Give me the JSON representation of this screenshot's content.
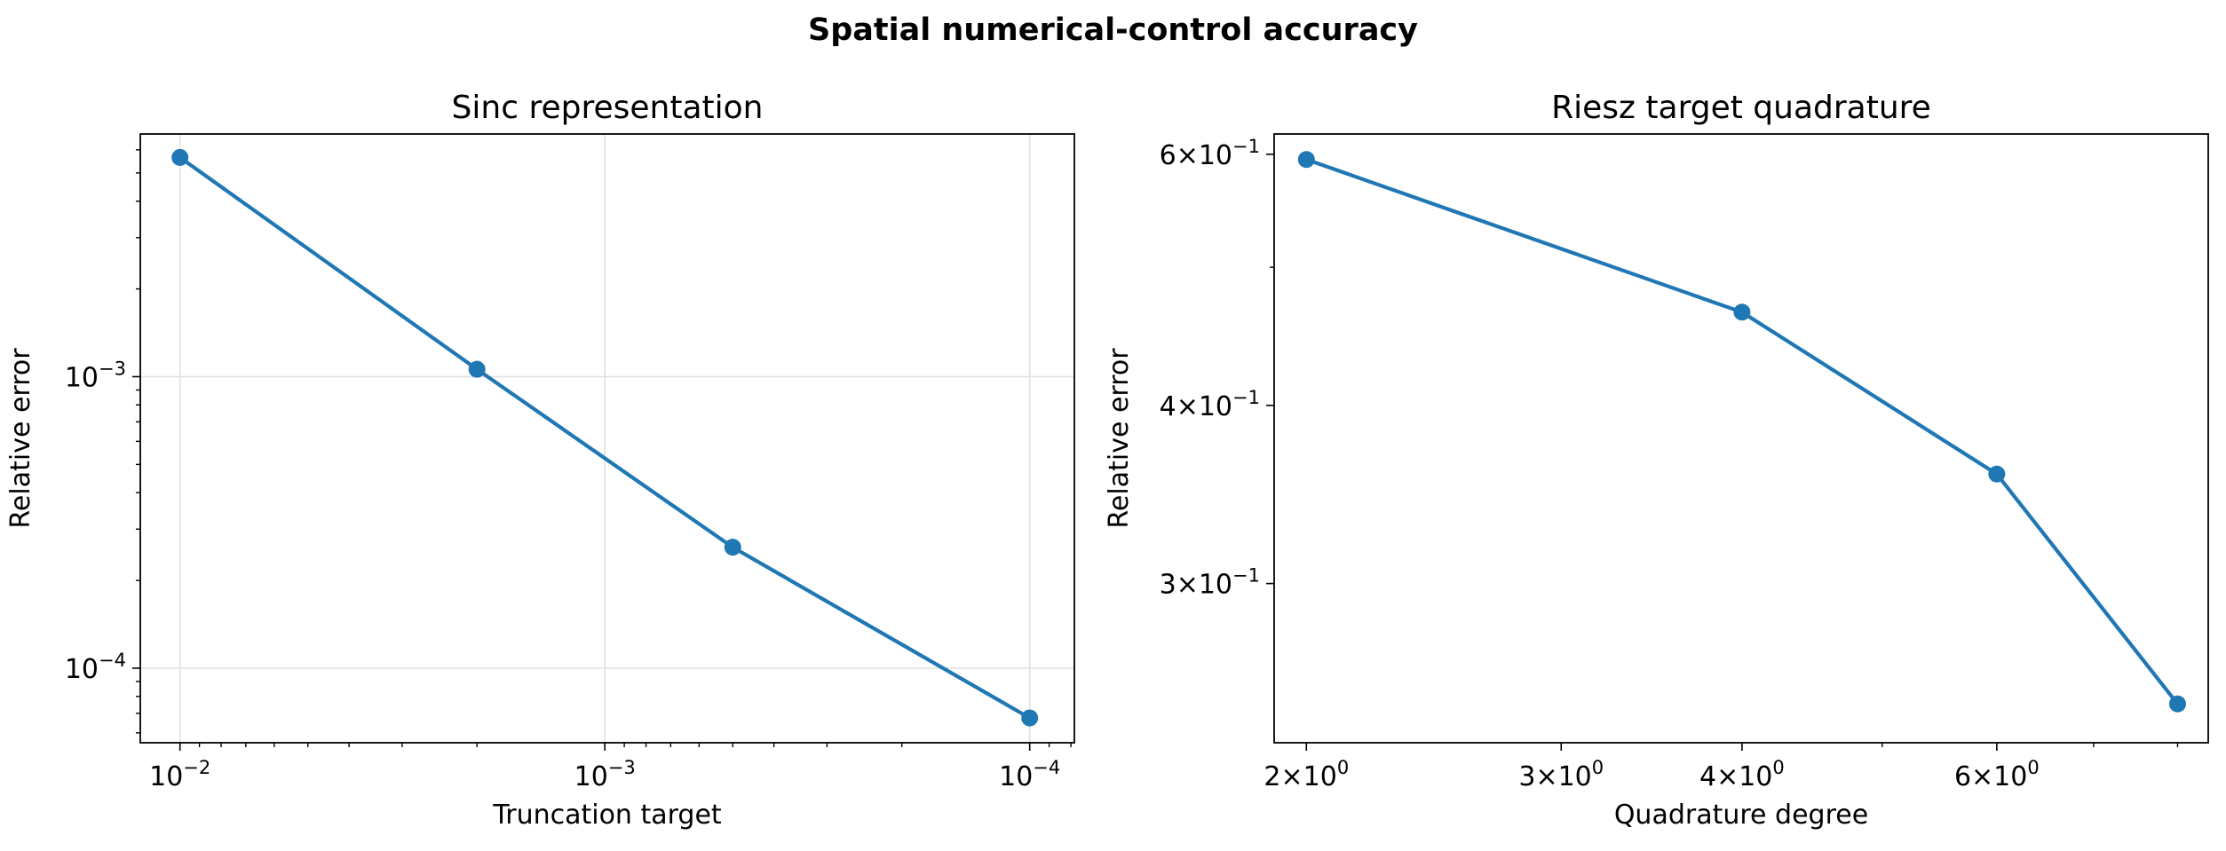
{
  "figure": {
    "suptitle": "Spatial numerical-control accuracy"
  },
  "colors": {
    "series": "#1f77b4",
    "grid": "#e0e0e0"
  },
  "chart_data": [
    {
      "type": "line",
      "title": "Sinc representation",
      "xlabel": "Truncation target",
      "ylabel": "Relative error",
      "xscale": "log",
      "yscale": "log",
      "x_inverted": true,
      "grid": true,
      "xlim": [
        0.0124,
        7.85e-05
      ],
      "ylim": [
        5.55e-05,
        0.0068
      ],
      "x_ticks": [
        {
          "value": 0.01,
          "base": "10",
          "exp": "−2"
        },
        {
          "value": 0.001,
          "base": "10",
          "exp": "−3"
        },
        {
          "value": 0.0001,
          "base": "10",
          "exp": "−4"
        }
      ],
      "y_ticks": [
        {
          "value": 0.001,
          "base": "10",
          "exp": "−3"
        },
        {
          "value": 0.0001,
          "base": "10",
          "exp": "−4"
        }
      ],
      "series": [
        {
          "x": [
            0.01,
            0.002,
            0.0005,
            0.0001
          ],
          "y": [
            0.00565,
            0.00106,
            0.00026,
            6.75e-05
          ]
        }
      ]
    },
    {
      "type": "line",
      "title": "Riesz target quadrature",
      "xlabel": "Quadrature degree",
      "ylabel": "Relative error",
      "xscale": "log",
      "yscale": "log",
      "x_inverted": false,
      "grid": false,
      "xlim": [
        1.9,
        8.4
      ],
      "ylim": [
        0.232,
        0.62
      ],
      "x_ticks": [
        {
          "value": 2,
          "base": "2×10",
          "exp": "0"
        },
        {
          "value": 3,
          "base": "3×10",
          "exp": "0"
        },
        {
          "value": 4,
          "base": "4×10",
          "exp": "0"
        },
        {
          "value": 6,
          "base": "6×10",
          "exp": "0"
        }
      ],
      "y_ticks": [
        {
          "value": 0.6,
          "base": "6×10",
          "exp": "−1"
        },
        {
          "value": 0.4,
          "base": "4×10",
          "exp": "−1"
        },
        {
          "value": 0.3,
          "base": "3×10",
          "exp": "−1"
        }
      ],
      "series": [
        {
          "x": [
            2,
            4,
            6,
            8
          ],
          "y": [
            0.595,
            0.465,
            0.358,
            0.247
          ]
        }
      ]
    }
  ]
}
